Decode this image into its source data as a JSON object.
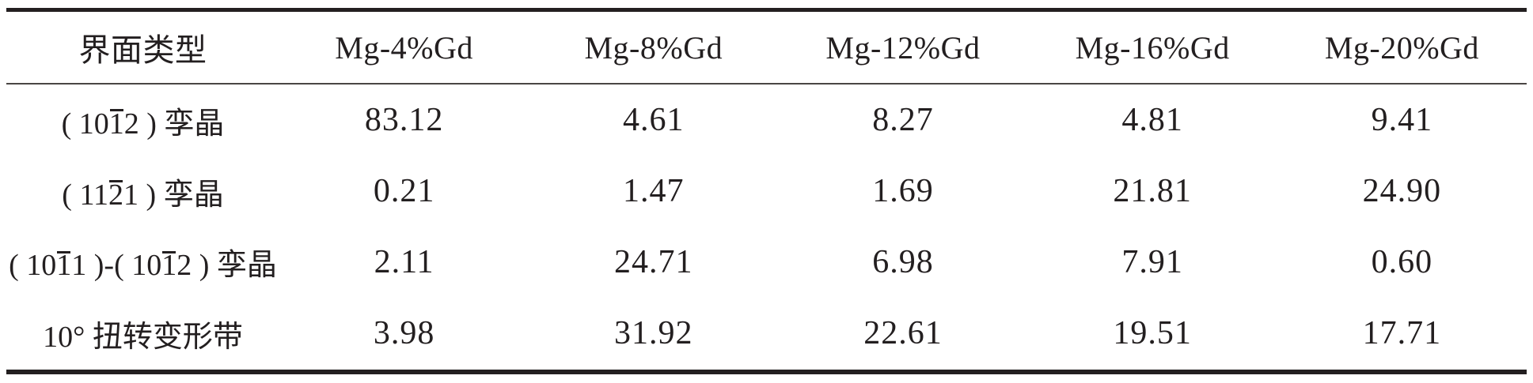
{
  "table": {
    "columns": [
      "界面类型",
      "Mg-4%Gd",
      "Mg-8%Gd",
      "Mg-12%Gd",
      "Mg-16%Gd",
      "Mg-20%Gd"
    ],
    "rows": [
      {
        "label": "( 101̅2 ) 孪晶",
        "values": [
          "83.12",
          "4.61",
          "8.27",
          "4.81",
          "9.41"
        ]
      },
      {
        "label": "( 112̅1 ) 孪晶",
        "values": [
          "0.21",
          "1.47",
          "1.69",
          "21.81",
          "24.90"
        ]
      },
      {
        "label": "( 101̅1 )-( 101̅2 ) 孪晶",
        "values": [
          "2.11",
          "24.71",
          "6.98",
          "7.91",
          "0.60"
        ]
      },
      {
        "label": "10° 扭转变形带",
        "values": [
          "3.98",
          "31.92",
          "22.61",
          "19.51",
          "17.71"
        ]
      }
    ]
  },
  "colors": {
    "text": "#231f20",
    "thick_rule": "#231f20",
    "thin_rule": "#4a4644",
    "background": "#ffffff"
  }
}
